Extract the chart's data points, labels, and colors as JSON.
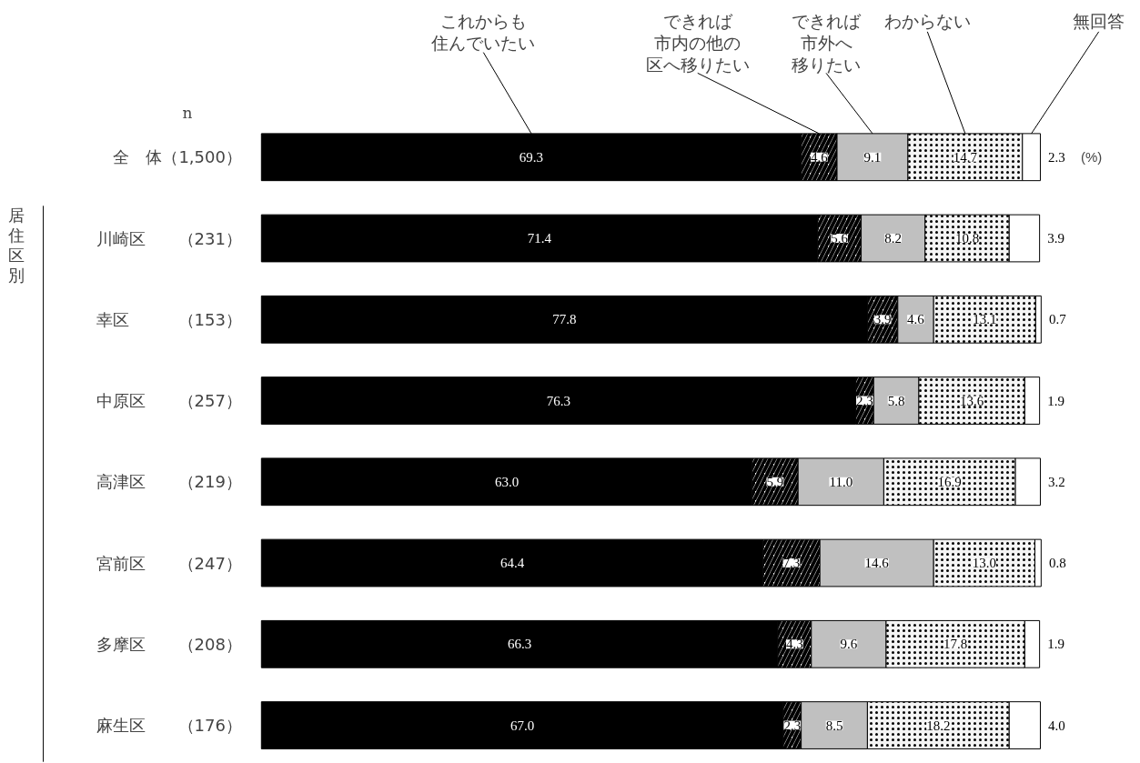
{
  "chart_data": {
    "type": "bar",
    "orientation": "horizontal",
    "stacked": true,
    "tick_labels": false,
    "xlim": [
      0,
      100
    ],
    "categories": [
      "全　体（1,500）",
      "川崎区　　（231）",
      "幸区　　　（153）",
      "中原区　　（257）",
      "高津区　　（219）",
      "宮前区　　（247）",
      "多摩区　　（208）",
      "麻生区　　（176）"
    ],
    "series": [
      {
        "name": "これからも住んでいたい",
        "color": "#000000",
        "values": [
          69.3,
          71.4,
          77.8,
          76.3,
          63.0,
          64.4,
          66.3,
          67.0
        ],
        "value_labels": [
          "69.3",
          "71.4",
          "77.8",
          "76.3",
          "63.0",
          "64.4",
          "66.3",
          "67.0"
        ]
      },
      {
        "name": "できれば市内の他の区へ移りたい",
        "color": "#ffffff",
        "values": [
          4.6,
          5.6,
          3.9,
          2.3,
          5.9,
          7.3,
          4.3,
          2.3
        ],
        "value_labels": [
          "4.6",
          "5.6",
          "3.9",
          "2.3",
          "5.9",
          "7.3",
          "4.3",
          "2.3"
        ]
      },
      {
        "name": "できれば市外へ移りたい",
        "color": "#c0c0c0",
        "values": [
          9.1,
          8.2,
          4.6,
          5.8,
          11.0,
          14.6,
          9.6,
          8.5
        ],
        "value_labels": [
          "9.1",
          "8.2",
          "4.6",
          "5.8",
          "11.0",
          "14.6",
          "9.6",
          "8.5"
        ]
      },
      {
        "name": "わからない",
        "color": "#f4f4f4",
        "values": [
          14.7,
          10.8,
          13.1,
          13.6,
          16.9,
          13.0,
          17.8,
          18.2
        ],
        "value_labels": [
          "14.7",
          "10.8",
          "13.1",
          "13.6",
          "16.9",
          "13.0",
          "17.8",
          "18.2"
        ]
      },
      {
        "name": "無回答",
        "color": "#ffffff",
        "values": [
          2.3,
          3.9,
          0.7,
          1.9,
          3.2,
          0.8,
          1.9,
          4.0
        ],
        "value_labels": [
          "2.3",
          "3.9",
          "0.7",
          "1.9",
          "3.2",
          "0.8",
          "1.9",
          "4.0"
        ]
      }
    ],
    "annotations": [
      "n",
      "居住区別",
      "(%)"
    ]
  }
}
